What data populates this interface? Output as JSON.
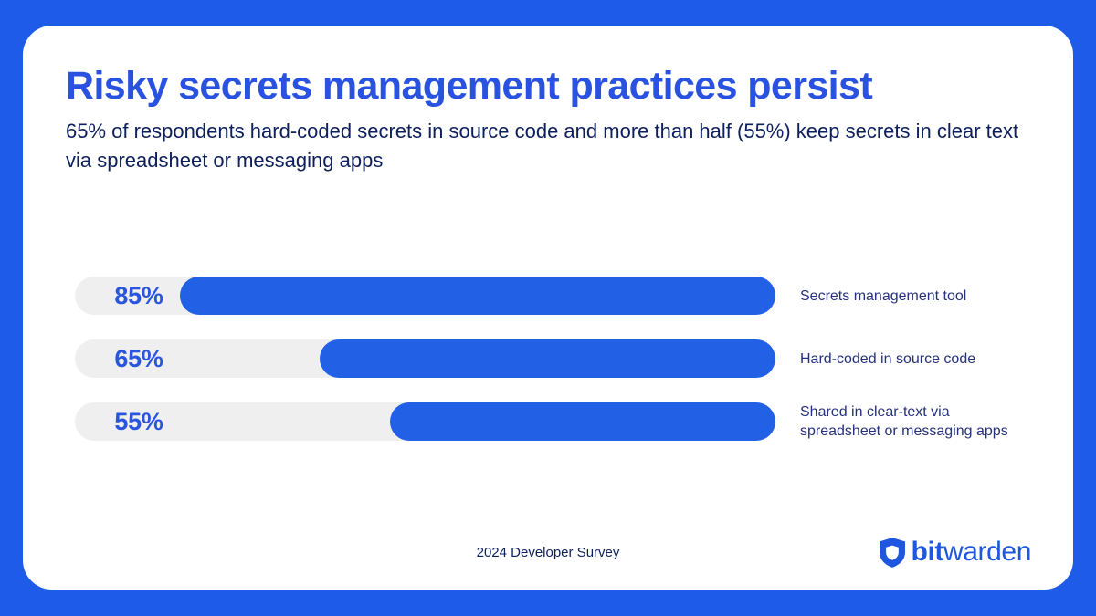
{
  "chart_data": {
    "type": "bar",
    "orientation": "horizontal",
    "title": "Risky secrets management practices persist",
    "subtitle": "65% of respondents hard-coded secrets in source code and more than half (55%) keep secrets in clear text via spreadsheet or messaging apps",
    "categories": [
      "Secrets management tool",
      "Hard-coded in source code",
      "Shared in clear-text via\nspreadsheet or messaging apps"
    ],
    "values": [
      85,
      65,
      55
    ],
    "value_labels": [
      "85%",
      "65%",
      "55%"
    ],
    "xlim": [
      0,
      100
    ],
    "grid": false,
    "legend": false,
    "bar_fill_alignment": "right",
    "source_caption": "2024 Developer Survey"
  },
  "footer": {
    "brand": {
      "icon": "shield-icon",
      "name_bold": "bit",
      "name_regular": "warden"
    }
  },
  "colors": {
    "background_blue": "#1E5BE8",
    "card_white": "#FFFFFF",
    "bar_fill_blue": "#2261E6",
    "bar_track_gray": "#EFEFEF",
    "title_blue": "#2A52E0",
    "value_label_blue": "#2A55DF",
    "body_navy": "#0D1F5C",
    "category_navy": "#25317A",
    "brand_blue": "#1E56E0"
  }
}
